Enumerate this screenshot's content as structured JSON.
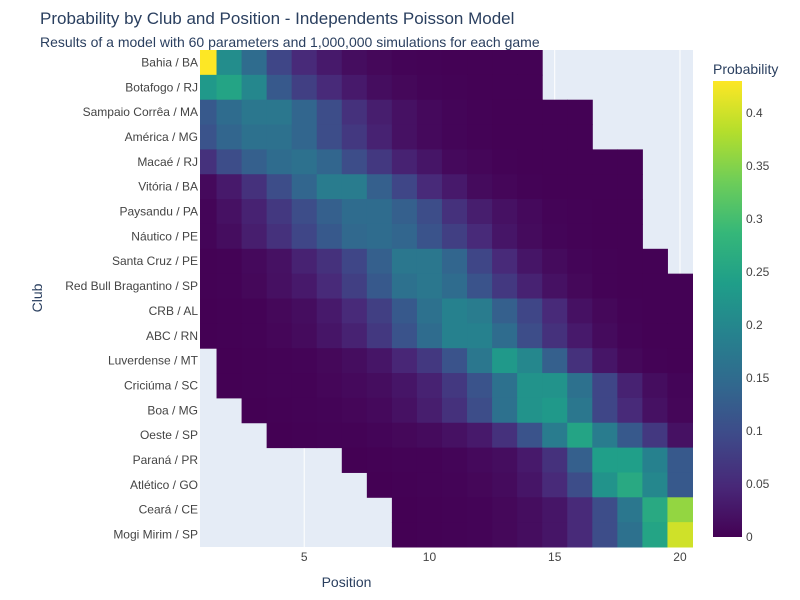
{
  "chart_data": {
    "type": "heatmap",
    "title": "Probability by Club and Position - Independents Poisson Model",
    "subtitle": "Results of a model with 60 parameters and 1,000,000 simulations for each game",
    "xlabel": "Position",
    "ylabel": "Club",
    "x_ticks": [
      "5",
      "10",
      "15",
      "20"
    ],
    "x": [
      1,
      2,
      3,
      4,
      5,
      6,
      7,
      8,
      9,
      10,
      11,
      12,
      13,
      14,
      15,
      16,
      17,
      18,
      19,
      20
    ],
    "clubs": [
      "Bahia / BA",
      "Botafogo / RJ",
      "Sampaio Corrêa / MA",
      "América / MG",
      "Macaé / RJ",
      "Vitória / BA",
      "Paysandu / PA",
      "Náutico / PE",
      "Santa Cruz / PE",
      "Red Bull Bragantino / SP",
      "CRB / AL",
      "ABC / RN",
      "Luverdense / MT",
      "Criciúma / SC",
      "Boa / MG",
      "Oeste / SP",
      "Paraná / PR",
      "Atlético / GO",
      "Ceará / CE",
      "Mogi Mirim / SP"
    ],
    "values": [
      [
        0.43,
        0.21,
        0.15,
        0.09,
        0.05,
        0.03,
        0.015,
        0.008,
        0.004,
        0.002,
        0.001,
        0.001,
        0.001,
        0.001,
        null,
        null,
        null,
        null,
        null,
        null
      ],
      [
        0.23,
        0.25,
        0.2,
        0.12,
        0.08,
        0.05,
        0.03,
        0.015,
        0.008,
        0.004,
        0.002,
        0.001,
        0.001,
        0.001,
        null,
        null,
        null,
        null,
        null,
        null
      ],
      [
        0.12,
        0.15,
        0.17,
        0.17,
        0.14,
        0.1,
        0.06,
        0.035,
        0.02,
        0.01,
        0.005,
        0.002,
        0.001,
        0.001,
        0.001,
        0.001,
        null,
        null,
        null,
        null
      ],
      [
        0.11,
        0.14,
        0.16,
        0.16,
        0.14,
        0.1,
        0.07,
        0.04,
        0.02,
        0.01,
        0.005,
        0.003,
        0.001,
        0.001,
        0.001,
        0.001,
        null,
        null,
        null,
        null
      ],
      [
        0.06,
        0.1,
        0.13,
        0.15,
        0.16,
        0.14,
        0.1,
        0.07,
        0.04,
        0.025,
        0.01,
        0.006,
        0.003,
        0.001,
        0.001,
        0.001,
        0.001,
        0.001,
        null,
        null
      ],
      [
        0.01,
        0.03,
        0.06,
        0.1,
        0.14,
        0.18,
        0.18,
        0.13,
        0.09,
        0.05,
        0.03,
        0.012,
        0.006,
        0.002,
        0.001,
        0.001,
        0.001,
        0.001,
        null,
        null
      ],
      [
        0.005,
        0.02,
        0.04,
        0.07,
        0.1,
        0.13,
        0.15,
        0.15,
        0.13,
        0.1,
        0.06,
        0.035,
        0.02,
        0.01,
        0.004,
        0.002,
        0.001,
        0.001,
        null,
        null
      ],
      [
        0.005,
        0.015,
        0.035,
        0.06,
        0.09,
        0.12,
        0.145,
        0.15,
        0.14,
        0.11,
        0.08,
        0.05,
        0.025,
        0.012,
        0.005,
        0.002,
        0.001,
        0.001,
        null,
        null
      ],
      [
        0.001,
        0.003,
        0.01,
        0.02,
        0.04,
        0.06,
        0.09,
        0.13,
        0.17,
        0.17,
        0.14,
        0.09,
        0.05,
        0.025,
        0.012,
        0.005,
        0.003,
        0.001,
        0.001,
        null
      ],
      [
        0.001,
        0.003,
        0.008,
        0.018,
        0.03,
        0.05,
        0.08,
        0.12,
        0.16,
        0.17,
        0.15,
        0.11,
        0.07,
        0.04,
        0.02,
        0.008,
        0.003,
        0.001,
        0.001,
        0.001
      ],
      [
        0.0005,
        0.001,
        0.003,
        0.008,
        0.015,
        0.03,
        0.05,
        0.08,
        0.12,
        0.16,
        0.19,
        0.18,
        0.13,
        0.09,
        0.05,
        0.02,
        0.008,
        0.003,
        0.001,
        0.001
      ],
      [
        0.0005,
        0.001,
        0.003,
        0.006,
        0.012,
        0.025,
        0.04,
        0.07,
        0.11,
        0.15,
        0.19,
        0.19,
        0.15,
        0.1,
        0.06,
        0.03,
        0.012,
        0.004,
        0.001,
        0.001
      ],
      [
        null,
        0.0005,
        0.001,
        0.002,
        0.004,
        0.008,
        0.015,
        0.025,
        0.045,
        0.07,
        0.11,
        0.17,
        0.23,
        0.2,
        0.13,
        0.06,
        0.025,
        0.008,
        0.003,
        0.001
      ],
      [
        null,
        0.0005,
        0.001,
        0.002,
        0.003,
        0.006,
        0.01,
        0.015,
        0.025,
        0.04,
        0.07,
        0.11,
        0.16,
        0.22,
        0.22,
        0.16,
        0.09,
        0.04,
        0.015,
        0.005
      ],
      [
        null,
        null,
        0.0005,
        0.001,
        0.002,
        0.004,
        0.006,
        0.01,
        0.02,
        0.035,
        0.06,
        0.1,
        0.16,
        0.22,
        0.23,
        0.17,
        0.09,
        0.05,
        0.02,
        0.006
      ],
      [
        null,
        null,
        null,
        0.0005,
        0.001,
        0.002,
        0.003,
        0.005,
        0.008,
        0.012,
        0.02,
        0.03,
        0.06,
        0.11,
        0.18,
        0.25,
        0.18,
        0.12,
        0.07,
        0.02
      ],
      [
        null,
        null,
        null,
        null,
        null,
        null,
        0.0005,
        0.001,
        0.002,
        0.003,
        0.005,
        0.01,
        0.015,
        0.03,
        0.06,
        0.13,
        0.24,
        0.24,
        0.19,
        0.12
      ],
      [
        null,
        null,
        null,
        null,
        null,
        null,
        null,
        0.0005,
        0.001,
        0.002,
        0.004,
        0.007,
        0.012,
        0.025,
        0.05,
        0.1,
        0.22,
        0.26,
        0.2,
        0.12
      ],
      [
        null,
        null,
        null,
        null,
        null,
        null,
        null,
        null,
        0.0005,
        0.001,
        0.002,
        0.004,
        0.008,
        0.015,
        0.025,
        0.05,
        0.1,
        0.17,
        0.26,
        0.36
      ],
      [
        null,
        null,
        null,
        null,
        null,
        null,
        null,
        null,
        0.0005,
        0.001,
        0.002,
        0.004,
        0.008,
        0.015,
        0.025,
        0.05,
        0.1,
        0.16,
        0.25,
        0.4
      ]
    ],
    "colorbar": {
      "title": "Probability",
      "min": 0,
      "max": 0.43,
      "ticks": [
        0,
        0.05,
        0.1,
        0.15,
        0.2,
        0.25,
        0.3,
        0.35,
        0.4
      ],
      "tick_labels": [
        "0",
        "0.05",
        "0.1",
        "0.15",
        "0.2",
        "0.25",
        "0.3",
        "0.35",
        "0.4"
      ]
    },
    "colorscale": "viridis",
    "colors": {
      "plot_bg": "#e5ecf6",
      "grid": "#ffffff",
      "text": "#2a3f5f",
      "tick_text": "#444444"
    },
    "grid": true
  }
}
